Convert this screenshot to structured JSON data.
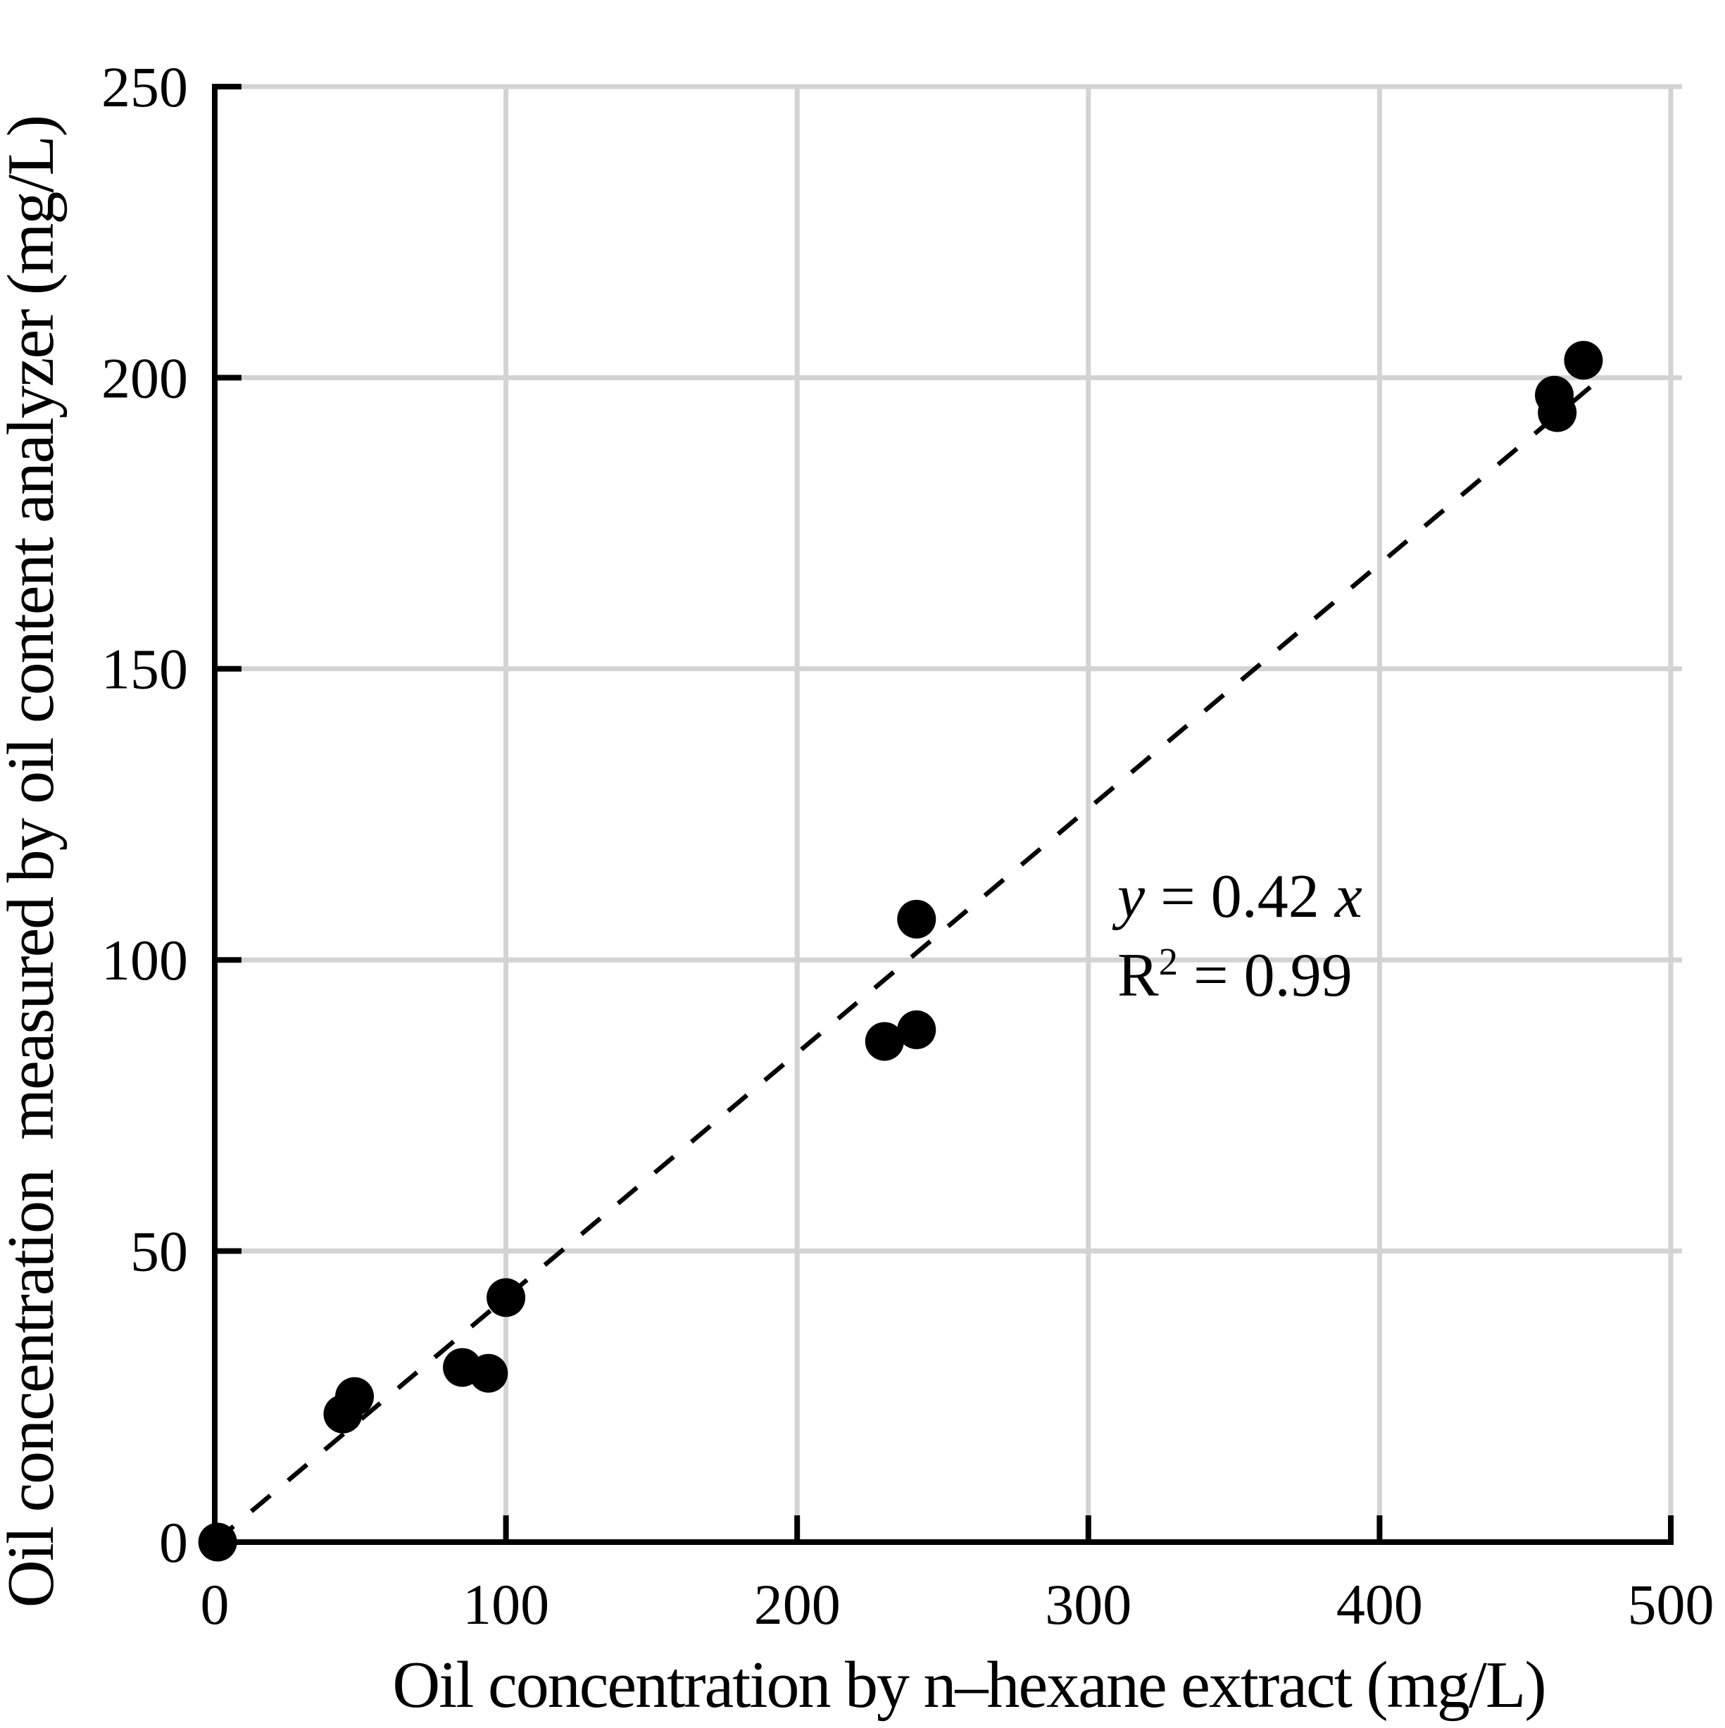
{
  "chart_data": {
    "type": "scatter",
    "title": "",
    "xlabel": "Oil concentration by n–hexane extract (mg/L)",
    "ylabel": "Oil concentration  measured by oil content analyzer (mg/L)",
    "xlim": [
      0,
      500
    ],
    "ylim": [
      0,
      250
    ],
    "x_ticks": [
      0,
      100,
      200,
      300,
      400,
      500
    ],
    "y_ticks": [
      0,
      50,
      100,
      150,
      200,
      250
    ],
    "grid": true,
    "legend": "none",
    "points": [
      [
        1,
        0
      ],
      [
        44,
        22
      ],
      [
        48,
        25
      ],
      [
        85,
        30
      ],
      [
        94,
        29
      ],
      [
        100,
        42
      ],
      [
        230,
        86
      ],
      [
        241,
        88
      ],
      [
        241,
        107
      ],
      [
        460,
        197
      ],
      [
        461,
        194
      ],
      [
        470,
        203
      ]
    ],
    "trendline": {
      "type": "linear",
      "slope": 0.42,
      "intercept": 0,
      "x_start": 0,
      "x_end": 478,
      "style": "dashed"
    },
    "annotation": {
      "lines": [
        [
          {
            "text": "y",
            "italic": true
          },
          {
            "text": " = 0.42 ",
            "italic": false
          },
          {
            "text": "x",
            "italic": true
          }
        ],
        [
          {
            "text": "R",
            "italic": false
          },
          {
            "text": "2",
            "italic": false,
            "sup": true
          },
          {
            "text": " = 0.99",
            "italic": false
          }
        ]
      ]
    },
    "colors": {
      "marker": "#000000",
      "grid": "#d3d3d3",
      "axis": "#000000",
      "trend": "#000000",
      "text": "#000000",
      "background": "#ffffff"
    }
  }
}
